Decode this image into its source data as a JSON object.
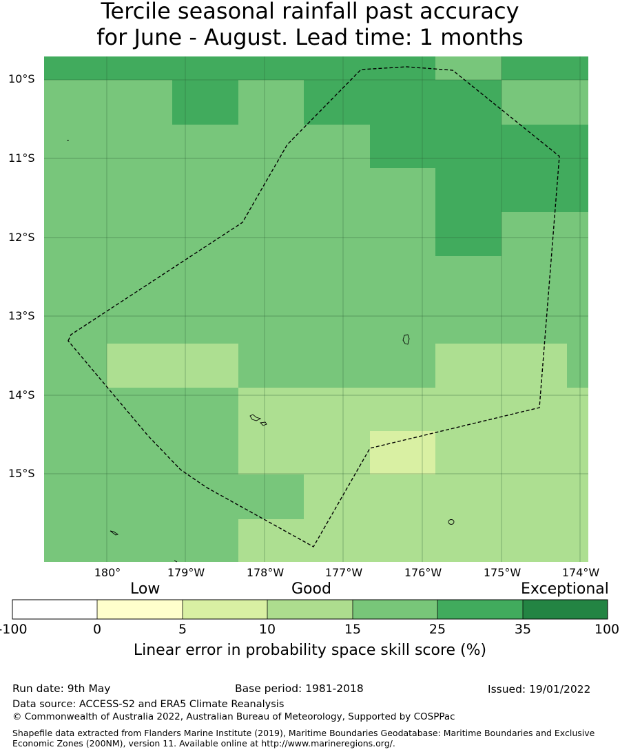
{
  "title": {
    "line1": "Tercile seasonal rainfall past accuracy",
    "line2": "for June - August. Lead time: 1 months"
  },
  "map": {
    "lat_labels": [
      "10°S",
      "11°S",
      "12°S",
      "13°S",
      "14°S",
      "15°S"
    ],
    "lon_labels": [
      "180°",
      "179°W",
      "178°W",
      "177°W",
      "176°W",
      "175°W",
      "174°W"
    ],
    "boundary_style": "dashed",
    "colors": {
      "c10_15": "#addf91",
      "c15_25": "#78c67b",
      "c25_35": "#41ab5d",
      "c5_10": "#d9f0a3"
    }
  },
  "colorbar": {
    "categories": [
      "Low",
      "Good",
      "Exceptional"
    ],
    "ticks": [
      "-100",
      "0",
      "5",
      "10",
      "15",
      "25",
      "35",
      "100"
    ],
    "colors": [
      "#ffffff",
      "#ffffcc",
      "#d9f0a3",
      "#addd8e",
      "#78c679",
      "#41ab5d",
      "#238443"
    ],
    "label": "Linear error in probability space skill score (%)"
  },
  "footer": {
    "run_date": "Run date: 9th May",
    "base_period": "Base period: 1981-2018",
    "issued": "Issued: 19/01/2022",
    "data_source": "Data source: ACCESS-S2 and ERA5 Climate Reanalysis",
    "copyright": "© Commonwealth of Australia 2022, Australian Bureau of Meteorology, Supported by COSPPac",
    "shapefile_note": "Shapefile data extracted from Flanders Marine Institute (2019), Maritime Boundaries Geodatabase: Maritime Boundaries and Exclusive Economic Zones (200NM), version 11. Available online at http://www.marineregions.org/."
  }
}
